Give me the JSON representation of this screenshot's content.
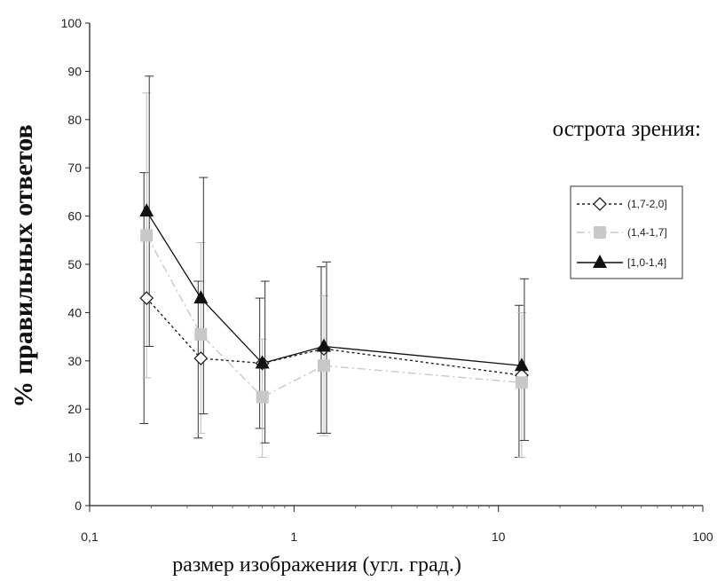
{
  "chart_data": {
    "type": "line",
    "title": "",
    "xlabel": "размер изображения (угл. град.)",
    "ylabel": "% правильных ответов",
    "annotation": "острота зрения:",
    "x_scale": "log",
    "xlim": [
      0.1,
      100
    ],
    "ylim": [
      0,
      100
    ],
    "x_ticks": [
      0.1,
      1,
      10,
      100
    ],
    "x_tick_labels": [
      "0,1",
      "1",
      "10",
      "100"
    ],
    "y_ticks": [
      0,
      10,
      20,
      30,
      40,
      50,
      60,
      70,
      80,
      90,
      100
    ],
    "y_tick_labels": [
      "0",
      "10",
      "20",
      "30",
      "40",
      "50",
      "60",
      "70",
      "80",
      "90",
      "100"
    ],
    "grid": false,
    "legend_position": "right",
    "x": [
      0.19,
      0.35,
      0.7,
      1.4,
      13
    ],
    "series": [
      {
        "name": "(1,7-2,0]",
        "values": [
          43,
          30.5,
          29.5,
          32.5,
          27
        ],
        "error_low": [
          17,
          14,
          16,
          15,
          10
        ],
        "error_high": [
          69,
          46.5,
          43,
          49.5,
          41.5
        ],
        "color": "#222222",
        "line_style": "dotted",
        "marker": "open-diamond"
      },
      {
        "name": "(1,4-1,7]",
        "values": [
          56,
          35.5,
          22.5,
          29,
          25.5
        ],
        "error_low": [
          26.5,
          15,
          10,
          14.5,
          10
        ],
        "error_high": [
          85.5,
          54.5,
          34.5,
          43.5,
          40
        ],
        "color": "#c8c8c8",
        "line_style": "dash-dot",
        "marker": "gray-square"
      },
      {
        "name": "[1,0-1,4]",
        "values": [
          61,
          43,
          29.5,
          33,
          29
        ],
        "error_low": [
          33,
          19,
          13,
          15,
          13.5
        ],
        "error_high": [
          89,
          68,
          46.5,
          50.5,
          47
        ],
        "color": "#111111",
        "line_style": "solid",
        "marker": "filled-triangle"
      }
    ]
  }
}
